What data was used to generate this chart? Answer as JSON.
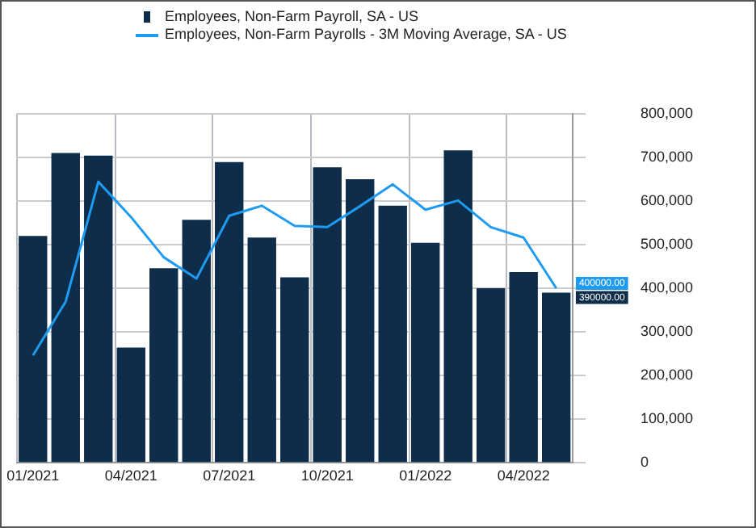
{
  "chart_data": {
    "type": "bar",
    "categories": [
      "01/2021",
      null,
      null,
      "04/2021",
      null,
      null,
      "07/2021",
      null,
      null,
      "10/2021",
      null,
      null,
      "01/2022",
      null,
      null,
      "04/2022",
      null
    ],
    "series": [
      {
        "name": "Employees, Non-Farm Payroll, SA - US",
        "color": "#0e2d4a",
        "values": [
          520000,
          710000,
          704000,
          264000,
          446000,
          557000,
          689000,
          516000,
          425000,
          677000,
          650000,
          589000,
          504000,
          716000,
          400000,
          437000,
          390000
        ]
      },
      {
        "name": "Employees, Non-Farm Payrolls - 3M Moving Average, SA - US",
        "type": "line",
        "color": "#1e9bf0",
        "values": [
          246000,
          369000,
          644000,
          563000,
          471000,
          422000,
          566000,
          589000,
          543000,
          540000,
          588000,
          638000,
          580000,
          601000,
          540000,
          516000,
          400000
        ]
      }
    ],
    "ylim": [
      0,
      800000
    ],
    "yticks": [
      {
        "value": 0,
        "label": "0"
      },
      {
        "value": 100000,
        "label": "100,000"
      },
      {
        "value": 200000,
        "label": "200,000"
      },
      {
        "value": 300000,
        "label": "300,000"
      },
      {
        "value": 400000,
        "label": "400,000"
      },
      {
        "value": 500000,
        "label": "500,000"
      },
      {
        "value": 600000,
        "label": "600,000"
      },
      {
        "value": 700000,
        "label": "700,000"
      },
      {
        "value": 800000,
        "label": "800,000"
      }
    ],
    "annotations": [
      "400000.00",
      "390000.00"
    ],
    "grid": true,
    "legend": "top",
    "marker": "none",
    "line_style": "solid"
  }
}
